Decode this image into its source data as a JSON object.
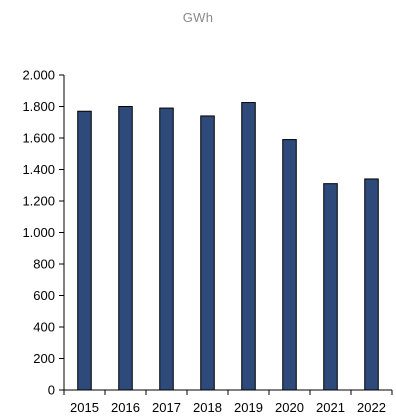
{
  "chart_data": {
    "type": "bar",
    "ylabel": "GWh",
    "categories": [
      "2015",
      "2016",
      "2017",
      "2018",
      "2019",
      "2020",
      "2021",
      "2022"
    ],
    "series": [
      {
        "values": [
          1770,
          1800,
          1790,
          1740,
          1825,
          1590,
          1310,
          1340
        ]
      }
    ],
    "ylim": [
      0,
      2000
    ],
    "yticks": [
      0,
      200,
      400,
      600,
      800,
      1000,
      1200,
      1400,
      1600,
      1800,
      2000
    ],
    "ytick_labels": [
      "0",
      "200",
      "400",
      "600",
      "800",
      "1.000",
      "1.200",
      "1.400",
      "1.600",
      "1.800",
      "2.000"
    ],
    "grid": false,
    "legend": "none",
    "colors": {
      "bar": "#2e4a7a",
      "axis": "#000000",
      "unit_label": "#8a8a8a"
    }
  }
}
